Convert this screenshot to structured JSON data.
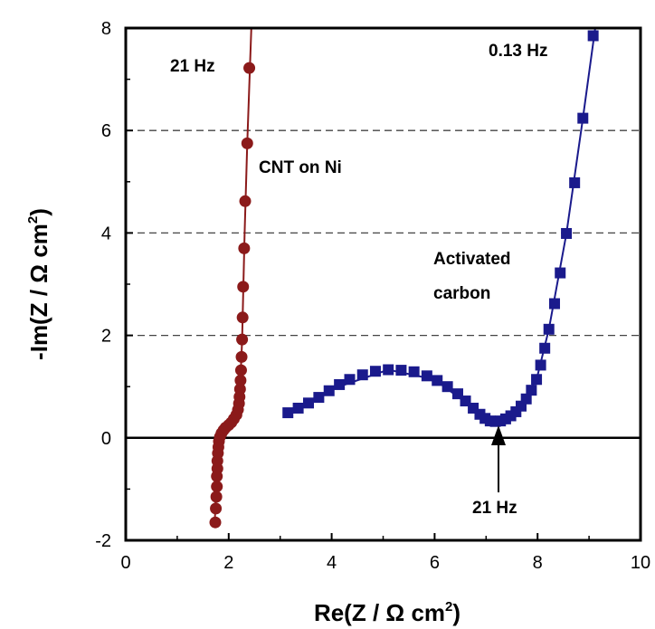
{
  "chart_data": {
    "type": "scatter",
    "xlabel": "Re(Z / Ω cm²)",
    "ylabel": "-Im(Z / Ω cm²)",
    "xlim": [
      0,
      10
    ],
    "ylim": [
      -2,
      8
    ],
    "x_ticks": [
      "0",
      "2",
      "4",
      "6",
      "8",
      "10"
    ],
    "y_ticks": [
      "-2",
      "0",
      "2",
      "4",
      "6",
      "8"
    ],
    "grid": "dashed horizontal at y = 2, 4, 6",
    "zero_line": true,
    "series": [
      {
        "name": "CNT on Ni",
        "marker": "circle",
        "color": "#8b1a1a",
        "points": [
          [
            1.74,
            -1.65
          ],
          [
            1.75,
            -1.38
          ],
          [
            1.76,
            -1.15
          ],
          [
            1.77,
            -0.95
          ],
          [
            1.77,
            -0.75
          ],
          [
            1.78,
            -0.6
          ],
          [
            1.78,
            -0.45
          ],
          [
            1.79,
            -0.3
          ],
          [
            1.8,
            -0.18
          ],
          [
            1.81,
            -0.07
          ],
          [
            1.83,
            0.02
          ],
          [
            1.86,
            0.09
          ],
          [
            1.9,
            0.15
          ],
          [
            1.94,
            0.2
          ],
          [
            2.0,
            0.25
          ],
          [
            2.05,
            0.3
          ],
          [
            2.1,
            0.37
          ],
          [
            2.15,
            0.45
          ],
          [
            2.18,
            0.55
          ],
          [
            2.2,
            0.67
          ],
          [
            2.21,
            0.8
          ],
          [
            2.22,
            0.95
          ],
          [
            2.23,
            1.12
          ],
          [
            2.24,
            1.32
          ],
          [
            2.25,
            1.58
          ],
          [
            2.26,
            1.92
          ],
          [
            2.27,
            2.35
          ],
          [
            2.28,
            2.95
          ],
          [
            2.3,
            3.7
          ],
          [
            2.32,
            4.62
          ],
          [
            2.36,
            5.75
          ],
          [
            2.4,
            7.22
          ]
        ],
        "line": [
          [
            1.73,
            -1.65
          ],
          [
            1.78,
            -0.3
          ],
          [
            1.85,
            0.08
          ],
          [
            2.0,
            0.25
          ],
          [
            2.17,
            0.5
          ],
          [
            2.22,
            0.95
          ],
          [
            2.26,
            1.9
          ],
          [
            2.31,
            4.0
          ],
          [
            2.36,
            5.75
          ],
          [
            2.44,
            8.0
          ]
        ]
      },
      {
        "name": "Activated carbon",
        "marker": "square",
        "color": "#1a1a8c",
        "points": [
          [
            3.15,
            0.49
          ],
          [
            3.35,
            0.58
          ],
          [
            3.55,
            0.68
          ],
          [
            3.75,
            0.79
          ],
          [
            3.95,
            0.92
          ],
          [
            4.15,
            1.04
          ],
          [
            4.35,
            1.14
          ],
          [
            4.6,
            1.23
          ],
          [
            4.85,
            1.3
          ],
          [
            5.1,
            1.33
          ],
          [
            5.35,
            1.32
          ],
          [
            5.6,
            1.29
          ],
          [
            5.85,
            1.21
          ],
          [
            6.05,
            1.12
          ],
          [
            6.25,
            1.0
          ],
          [
            6.45,
            0.86
          ],
          [
            6.6,
            0.72
          ],
          [
            6.75,
            0.58
          ],
          [
            6.88,
            0.46
          ],
          [
            6.98,
            0.38
          ],
          [
            7.08,
            0.33
          ],
          [
            7.18,
            0.32
          ],
          [
            7.28,
            0.33
          ],
          [
            7.38,
            0.37
          ],
          [
            7.48,
            0.43
          ],
          [
            7.58,
            0.51
          ],
          [
            7.68,
            0.62
          ],
          [
            7.78,
            0.76
          ],
          [
            7.88,
            0.93
          ],
          [
            7.98,
            1.14
          ],
          [
            8.06,
            1.42
          ],
          [
            8.14,
            1.75
          ],
          [
            8.22,
            2.12
          ],
          [
            8.33,
            2.62
          ],
          [
            8.44,
            3.22
          ],
          [
            8.56,
            3.99
          ],
          [
            8.72,
            4.98
          ],
          [
            8.88,
            6.24
          ],
          [
            9.08,
            7.85
          ]
        ],
        "line": [
          [
            3.15,
            0.49
          ],
          [
            4.0,
            0.95
          ],
          [
            5.1,
            1.33
          ],
          [
            6.0,
            1.14
          ],
          [
            6.75,
            0.58
          ],
          [
            7.18,
            0.32
          ],
          [
            7.58,
            0.51
          ],
          [
            7.98,
            1.14
          ],
          [
            8.22,
            2.12
          ],
          [
            8.56,
            3.99
          ],
          [
            8.88,
            6.24
          ],
          [
            9.12,
            8.0
          ]
        ]
      }
    ],
    "annotations": {
      "cnt_freq": "21 Hz",
      "cnt_label": "CNT on Ni",
      "ac_freq_high": "0.13 Hz",
      "ac_label_line1": "Activated",
      "ac_label_line2": "carbon",
      "ac_freq_min": "21 Hz"
    }
  }
}
